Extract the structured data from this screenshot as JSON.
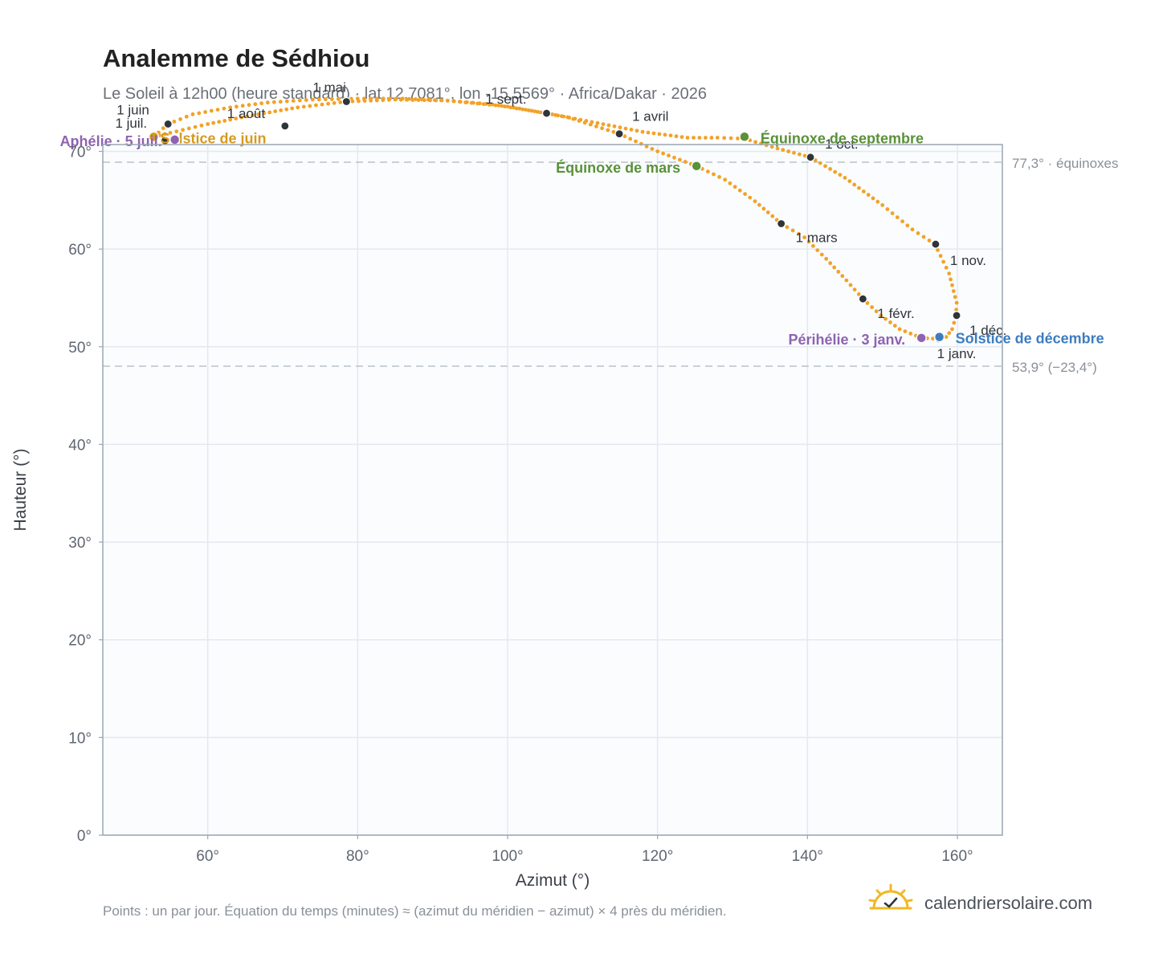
{
  "header": {
    "title": "Analemme de Sédhiou",
    "subtitle": "Le Soleil à 12h00 (heure standard) · lat 12,7081°, lon -15,5569° · Africa/Dakar · 2026"
  },
  "colors": {
    "path": "#f2a228",
    "month_dot": "#2f343b",
    "equinox": "#5a9139",
    "solstice_june": "#d69a1e",
    "solstice_december": "#3d7cc0",
    "apsis": "#8e63b0",
    "plot_bg": "#fafcfe",
    "frame": "#9aa6b4",
    "grid": "#e4e9ef",
    "ref_line": "#b9c2cc"
  },
  "chart_data": {
    "type": "scatter",
    "xlabel": "Azimut (°)",
    "ylabel": "Hauteur (°)",
    "xlim": [
      46,
      166
    ],
    "ylim": [
      0,
      70.7
    ],
    "x_ticks": [
      {
        "value": 60,
        "label": "60°"
      },
      {
        "value": 80,
        "label": "80°"
      },
      {
        "value": 100,
        "label": "100°"
      },
      {
        "value": 120,
        "label": "120°"
      },
      {
        "value": 140,
        "label": "140°"
      },
      {
        "value": 160,
        "label": "160°"
      }
    ],
    "y_ticks": [
      {
        "value": 0,
        "label": "0°"
      },
      {
        "value": 10,
        "label": "10°"
      },
      {
        "value": 20,
        "label": "20°"
      },
      {
        "value": 30,
        "label": "30°"
      },
      {
        "value": 40,
        "label": "40°"
      },
      {
        "value": 50,
        "label": "50°"
      },
      {
        "value": 60,
        "label": "60°"
      },
      {
        "value": 70,
        "label": "70°"
      }
    ],
    "grid": true,
    "reference_lines": [
      {
        "y": 77.3,
        "label": "77,3° · équinoxes"
      },
      {
        "y": 53.9,
        "label": "53,9° (−23,4°)"
      }
    ],
    "path_points": [
      [
        157.5,
        50.8
      ],
      [
        155.2,
        50.9
      ],
      [
        152.3,
        51.8
      ],
      [
        149.8,
        53.2
      ],
      [
        147.4,
        54.9
      ],
      [
        145.2,
        56.8
      ],
      [
        142.5,
        59.0
      ],
      [
        139.6,
        61.2
      ],
      [
        136.5,
        62.6
      ],
      [
        133.0,
        64.9
      ],
      [
        129.0,
        67.1
      ],
      [
        125.2,
        68.5
      ],
      [
        120.0,
        70.0
      ],
      [
        114.9,
        71.8
      ],
      [
        108.0,
        73.5
      ],
      [
        100.0,
        74.6
      ],
      [
        92.0,
        75.2
      ],
      [
        85.0,
        75.3
      ],
      [
        78.5,
        75.1
      ],
      [
        72.0,
        74.5
      ],
      [
        66.0,
        73.7
      ],
      [
        60.0,
        72.8
      ],
      [
        55.0,
        71.9
      ],
      [
        52.8,
        71.5
      ],
      [
        54.7,
        72.8
      ],
      [
        58.0,
        73.8
      ],
      [
        63.0,
        74.5
      ],
      [
        68.0,
        75.0
      ],
      [
        74.0,
        75.3
      ],
      [
        80.0,
        75.4
      ],
      [
        86.0,
        75.4
      ],
      [
        92.0,
        75.2
      ],
      [
        98.0,
        74.8
      ],
      [
        105.2,
        73.9
      ],
      [
        112.0,
        72.9
      ],
      [
        118.0,
        72.0
      ],
      [
        124.0,
        71.4
      ],
      [
        128.0,
        71.4
      ],
      [
        131.6,
        71.3
      ],
      [
        136.0,
        70.3
      ],
      [
        140.4,
        69.4
      ],
      [
        145.0,
        67.3
      ],
      [
        150.0,
        64.5
      ],
      [
        154.0,
        62.0
      ],
      [
        157.0,
        60.5
      ],
      [
        158.9,
        57.5
      ],
      [
        159.9,
        54.5
      ],
      [
        159.8,
        53.1
      ],
      [
        159.3,
        51.8
      ],
      [
        158.5,
        51.0
      ],
      [
        157.5,
        50.8
      ]
    ],
    "month_markers": [
      {
        "label": "1 janv.",
        "x": 157.5,
        "y": 50.8
      },
      {
        "label": "1 févr.",
        "x": 147.4,
        "y": 54.9
      },
      {
        "label": "1 mars",
        "x": 136.5,
        "y": 62.6
      },
      {
        "label": "1 avril",
        "x": 114.9,
        "y": 71.8
      },
      {
        "label": "1 mai",
        "x": 78.5,
        "y": 75.1
      },
      {
        "label": "1 juin",
        "x": 54.7,
        "y": 72.8
      },
      {
        "label": "1 juil.",
        "x": 54.3,
        "y": 71.1
      },
      {
        "label": "1 août",
        "x": 70.3,
        "y": 72.6
      },
      {
        "label": "1 sept.",
        "x": 105.2,
        "y": 73.9
      },
      {
        "label": "1 oct.",
        "x": 140.4,
        "y": 69.4
      },
      {
        "label": "1 nov.",
        "x": 157.1,
        "y": 60.5
      },
      {
        "label": "1 déc.",
        "x": 159.9,
        "y": 53.2
      }
    ],
    "events": [
      {
        "label": "Équinoxe de mars",
        "x": 125.2,
        "y": 68.5,
        "kind": "equinox"
      },
      {
        "label": "Équinoxe de septembre",
        "x": 131.6,
        "y": 71.5,
        "kind": "equinox"
      },
      {
        "label": "Solstice de juin",
        "x": 52.8,
        "y": 71.5,
        "kind": "solstice_june"
      },
      {
        "label": "Solstice de décembre",
        "x": 157.6,
        "y": 51.0,
        "kind": "solstice_december"
      },
      {
        "label": "Aphélie · 5 juil.",
        "x": 55.6,
        "y": 71.2,
        "kind": "apsis"
      },
      {
        "label": "Périhélie · 3 janv.",
        "x": 155.2,
        "y": 50.9,
        "kind": "apsis"
      }
    ]
  },
  "footer": {
    "note": "Points : un par jour. Équation du temps (minutes) ≈ (azimut du méridien − azimut) × 4 près du méridien.",
    "brand": "calendriersolaire.com",
    "brand_icon": "sun-check-icon"
  }
}
